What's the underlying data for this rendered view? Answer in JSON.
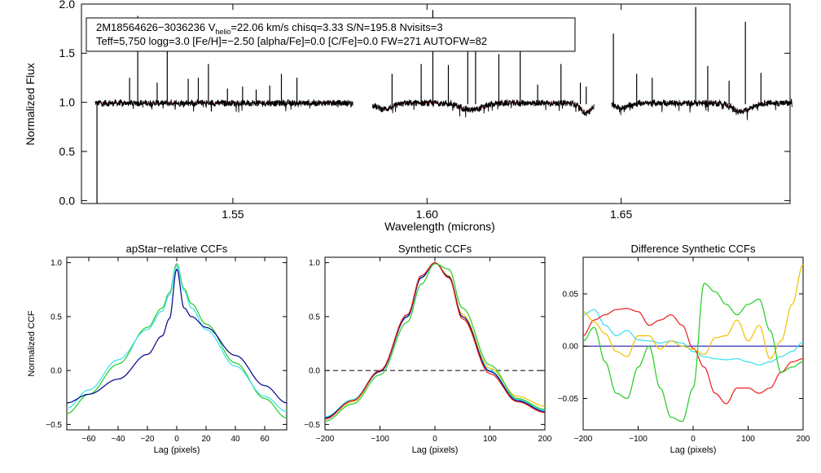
{
  "figure": {
    "header_line1": {
      "id": "2M18564626−3036236",
      "v_prefix": "V",
      "v_sub": "helio",
      "v_rest": "=22.06 km/s  chisq=3.33  S/N=195.8  Nvisits=3"
    },
    "header_line2": "Teff=5,750 logg=3.0 [Fe/H]=−2.50 [alpha/Fe]=0.0 [C/Fe]=0.0 FW=271 AUTOFW=82"
  },
  "colors": {
    "black": "#000000",
    "red": "#ee1c1c",
    "green": "#22cc22",
    "cyan": "#33e0ee",
    "navy": "#00008b",
    "orange": "#f0c000",
    "blue_line": "#1a1aaa"
  },
  "chart_data": [
    {
      "id": "spectrum",
      "type": "line",
      "title": "",
      "xlabel": "Wavelength (microns)",
      "ylabel": "Normalized Flux",
      "xlim": [
        1.511,
        1.6935
      ],
      "ylim": [
        -0.03,
        2.0
      ],
      "xticks": [
        1.55,
        1.6,
        1.65
      ],
      "xtick_labels": [
        "1.55",
        "1.60",
        "1.65"
      ],
      "yticks": [
        0.0,
        0.5,
        1.0,
        1.5,
        2.0
      ],
      "ytick_labels": [
        "0.0",
        "0.5",
        "1.0",
        "1.5",
        "2.0"
      ],
      "segments": [
        [
          1.5145,
          1.5809
        ],
        [
          1.586,
          1.643
        ],
        [
          1.6475,
          1.694
        ]
      ],
      "left_edge_drop": 1.515,
      "emission_spikes": [
        {
          "x": 1.5234,
          "y": 1.25
        },
        {
          "x": 1.5255,
          "y": 1.88
        },
        {
          "x": 1.5305,
          "y": 1.2
        },
        {
          "x": 1.5331,
          "y": 1.86
        },
        {
          "x": 1.5385,
          "y": 1.24
        },
        {
          "x": 1.5411,
          "y": 1.25
        },
        {
          "x": 1.5437,
          "y": 1.39
        },
        {
          "x": 1.5486,
          "y": 1.14
        },
        {
          "x": 1.5525,
          "y": 1.16
        },
        {
          "x": 1.556,
          "y": 1.13
        },
        {
          "x": 1.5595,
          "y": 1.17
        },
        {
          "x": 1.5625,
          "y": 1.29
        },
        {
          "x": 1.5665,
          "y": 1.25
        },
        {
          "x": 1.591,
          "y": 1.29
        },
        {
          "x": 1.5985,
          "y": 1.39
        },
        {
          "x": 1.6015,
          "y": 1.94
        },
        {
          "x": 1.6055,
          "y": 1.38
        },
        {
          "x": 1.6105,
          "y": 1.56
        },
        {
          "x": 1.6125,
          "y": 1.66
        },
        {
          "x": 1.6185,
          "y": 1.49
        },
        {
          "x": 1.624,
          "y": 1.86
        },
        {
          "x": 1.6285,
          "y": 1.18
        },
        {
          "x": 1.6345,
          "y": 1.39
        },
        {
          "x": 1.6395,
          "y": 1.2
        },
        {
          "x": 1.641,
          "y": 1.16
        },
        {
          "x": 1.648,
          "y": 1.7
        },
        {
          "x": 1.654,
          "y": 1.29
        },
        {
          "x": 1.658,
          "y": 1.25
        },
        {
          "x": 1.6692,
          "y": 1.97
        },
        {
          "x": 1.6723,
          "y": 1.37
        },
        {
          "x": 1.6778,
          "y": 1.22
        },
        {
          "x": 1.682,
          "y": 1.82
        },
        {
          "x": 1.686,
          "y": 1.3
        }
      ],
      "absorption_dips": [
        {
          "x": 1.589,
          "c": 1.589,
          "w": 0.003,
          "d": 0.06
        },
        {
          "x": 1.6115,
          "c": 1.6115,
          "w": 0.004,
          "d": 0.07
        },
        {
          "x": 1.641,
          "c": 1.641,
          "w": 0.002,
          "d": 0.1
        },
        {
          "x": 1.65,
          "c": 1.65,
          "w": 0.0025,
          "d": 0.05
        },
        {
          "x": 1.681,
          "c": 1.681,
          "w": 0.003,
          "d": 0.09
        }
      ],
      "series": [
        {
          "name": "observed",
          "color": "#000000"
        },
        {
          "name": "synthetic",
          "color": "#ee1c1c"
        }
      ]
    },
    {
      "id": "apstar-ccf",
      "type": "line",
      "title": "apStar−relative CCFs",
      "xlabel": "Lag (pixels)",
      "ylabel": "Normalized CCF",
      "xlim": [
        -75,
        75
      ],
      "ylim": [
        -0.55,
        1.05
      ],
      "xticks": [
        -60,
        -40,
        -20,
        0,
        20,
        40,
        60
      ],
      "xtick_labels": [
        "−60",
        "−40",
        "−20",
        "0",
        "20",
        "40",
        "60"
      ],
      "yticks": [
        -0.5,
        0.0,
        0.5,
        1.0
      ],
      "ytick_labels": [
        "−0.5",
        "0.0",
        "0.5",
        "1.0"
      ],
      "series": [
        {
          "name": "green",
          "color": "#22cc22",
          "x": [
            -75,
            -60,
            -40,
            -20,
            -10,
            -5,
            0,
            5,
            10,
            20,
            40,
            60,
            75
          ],
          "y": [
            -0.4,
            -0.22,
            0.06,
            0.4,
            0.58,
            0.72,
            0.99,
            0.76,
            0.62,
            0.43,
            0.07,
            -0.26,
            -0.44
          ]
        },
        {
          "name": "cyan",
          "color": "#33e0ee",
          "x": [
            -75,
            -60,
            -40,
            -20,
            -10,
            -5,
            0,
            5,
            10,
            20,
            40,
            60,
            75
          ],
          "y": [
            -0.35,
            -0.18,
            0.1,
            0.38,
            0.55,
            0.7,
            0.97,
            0.74,
            0.58,
            0.38,
            0.04,
            -0.24,
            -0.38
          ]
        },
        {
          "name": "navy",
          "color": "#00008b",
          "x": [
            -75,
            -60,
            -40,
            -20,
            -10,
            -5,
            0,
            5,
            10,
            20,
            40,
            60,
            75
          ],
          "y": [
            -0.3,
            -0.22,
            -0.08,
            0.15,
            0.32,
            0.48,
            0.94,
            0.58,
            0.5,
            0.4,
            0.14,
            -0.14,
            -0.3
          ]
        }
      ]
    },
    {
      "id": "synthetic-ccf",
      "type": "line",
      "title": "Synthetic CCFs",
      "xlabel": "Lag (pixels)",
      "ylabel": "",
      "xlim": [
        -200,
        200
      ],
      "ylim": [
        -0.55,
        1.05
      ],
      "xticks": [
        -200,
        -100,
        0,
        100,
        200
      ],
      "xtick_labels": [
        "−200",
        "−100",
        "0",
        "100",
        "200"
      ],
      "yticks": [
        -0.5,
        0.0,
        0.5,
        1.0
      ],
      "ytick_labels": [
        "−0.5",
        "0.0",
        "0.5",
        "1.0"
      ],
      "zero_line": 0.0,
      "series": [
        {
          "name": "orange",
          "color": "#f0c000",
          "x": [
            -200,
            -150,
            -100,
            -50,
            -25,
            0,
            25,
            50,
            100,
            150,
            200
          ],
          "y": [
            -0.45,
            -0.29,
            -0.01,
            0.5,
            0.86,
            1.0,
            0.88,
            0.52,
            0.02,
            -0.24,
            -0.33
          ]
        },
        {
          "name": "cyan",
          "color": "#33e0ee",
          "x": [
            -200,
            -150,
            -100,
            -50,
            -25,
            0,
            25,
            50,
            100,
            150,
            200
          ],
          "y": [
            -0.43,
            -0.27,
            0.0,
            0.51,
            0.87,
            1.0,
            0.87,
            0.5,
            0.0,
            -0.27,
            -0.37
          ]
        },
        {
          "name": "navy",
          "color": "#00008b",
          "x": [
            -200,
            -150,
            -100,
            -50,
            -25,
            0,
            25,
            50,
            100,
            150,
            200
          ],
          "y": [
            -0.44,
            -0.28,
            -0.01,
            0.5,
            0.86,
            1.0,
            0.87,
            0.5,
            -0.01,
            -0.28,
            -0.38
          ]
        },
        {
          "name": "red",
          "color": "#ee1c1c",
          "x": [
            -200,
            -150,
            -100,
            -50,
            -25,
            0,
            25,
            50,
            100,
            150,
            200
          ],
          "y": [
            -0.45,
            -0.28,
            0.0,
            0.52,
            0.88,
            1.0,
            0.86,
            0.48,
            -0.03,
            -0.29,
            -0.39
          ]
        },
        {
          "name": "green",
          "color": "#22cc22",
          "x": [
            -200,
            -150,
            -100,
            -50,
            -25,
            0,
            25,
            50,
            100,
            150,
            200
          ],
          "y": [
            -0.47,
            -0.31,
            -0.04,
            0.45,
            0.8,
            0.99,
            0.94,
            0.58,
            0.05,
            -0.26,
            -0.36
          ]
        }
      ]
    },
    {
      "id": "difference-ccf",
      "type": "line",
      "title": "Difference Synthetic CCFs",
      "xlabel": "Lag (pixels)",
      "ylabel": "",
      "xlim": [
        -200,
        200
      ],
      "ylim": [
        -0.08,
        0.085
      ],
      "xticks": [
        -200,
        -100,
        0,
        100,
        200
      ],
      "xtick_labels": [
        "−200",
        "−100",
        "0",
        "100",
        "200"
      ],
      "yticks": [
        -0.05,
        0.0,
        0.05
      ],
      "ytick_labels": [
        "−0.05",
        "0.00",
        "0.05"
      ],
      "series": [
        {
          "name": "navy",
          "color": "#1a1aaa",
          "x": [
            -200,
            200
          ],
          "y": [
            0.0,
            0.0
          ]
        },
        {
          "name": "cyan",
          "color": "#33e0ee",
          "x": [
            -200,
            -180,
            -160,
            -140,
            -120,
            -100,
            -80,
            -60,
            -40,
            -20,
            0,
            20,
            40,
            60,
            80,
            100,
            120,
            140,
            160,
            180,
            200
          ],
          "y": [
            0.03,
            0.035,
            0.02,
            0.01,
            0.015,
            0.006,
            0.005,
            0.003,
            0.005,
            0.003,
            -0.005,
            -0.01,
            -0.012,
            -0.013,
            -0.012,
            -0.015,
            -0.018,
            -0.015,
            -0.01,
            -0.005,
            0.004
          ]
        },
        {
          "name": "red",
          "color": "#ee1c1c",
          "x": [
            -200,
            -180,
            -160,
            -140,
            -120,
            -100,
            -80,
            -60,
            -40,
            -20,
            0,
            20,
            40,
            60,
            80,
            100,
            120,
            140,
            160,
            180,
            200
          ],
          "y": [
            0.01,
            0.025,
            0.03,
            0.035,
            0.036,
            0.033,
            0.02,
            0.025,
            0.03,
            0.02,
            -0.002,
            -0.02,
            -0.045,
            -0.055,
            -0.04,
            -0.04,
            -0.045,
            -0.04,
            -0.025,
            -0.015,
            -0.012
          ]
        },
        {
          "name": "orange",
          "color": "#f0c000",
          "x": [
            -200,
            -180,
            -160,
            -140,
            -120,
            -100,
            -80,
            -60,
            -40,
            -20,
            0,
            20,
            40,
            60,
            80,
            100,
            120,
            140,
            160,
            180,
            200
          ],
          "y": [
            0.033,
            0.023,
            0.012,
            -0.005,
            -0.01,
            0.01,
            0.01,
            -0.003,
            0.005,
            0.0,
            -0.003,
            -0.008,
            0.008,
            0.01,
            0.025,
            0.005,
            0.02,
            -0.012,
            0.005,
            0.04,
            0.078
          ]
        },
        {
          "name": "green",
          "color": "#22cc22",
          "x": [
            -200,
            -180,
            -160,
            -140,
            -120,
            -100,
            -80,
            -60,
            -40,
            -20,
            0,
            20,
            40,
            60,
            80,
            100,
            120,
            140,
            160,
            180,
            200
          ],
          "y": [
            0.005,
            0.018,
            -0.015,
            -0.045,
            -0.05,
            -0.02,
            0.0,
            -0.04,
            -0.068,
            -0.072,
            -0.04,
            0.06,
            0.052,
            0.04,
            0.03,
            0.04,
            0.045,
            0.015,
            -0.025,
            -0.02,
            -0.015
          ]
        }
      ]
    }
  ]
}
